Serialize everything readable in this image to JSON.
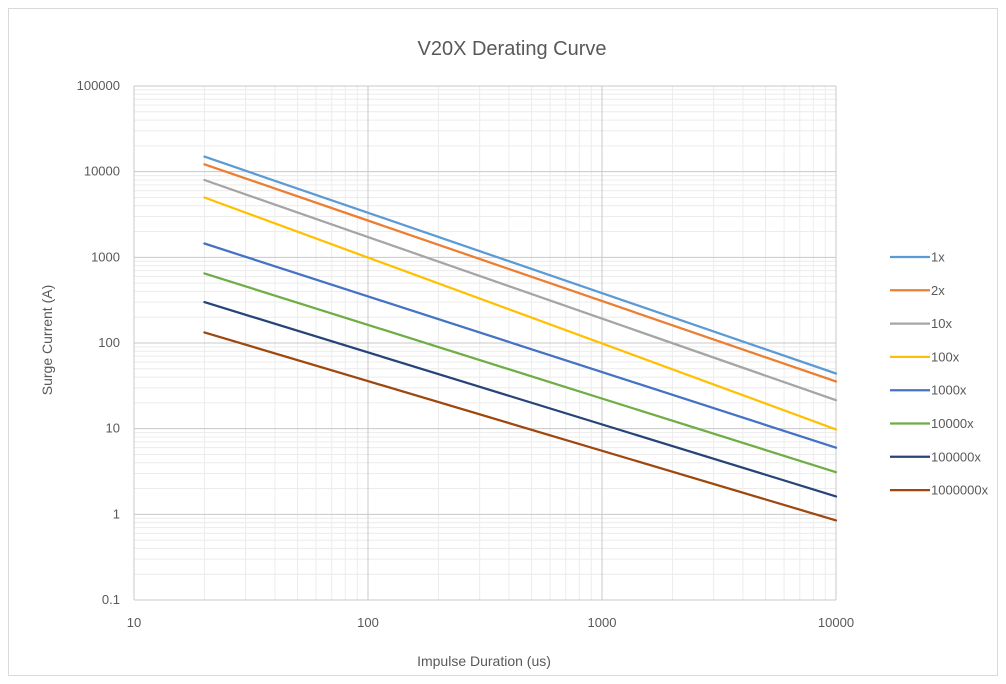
{
  "chart_data": {
    "type": "line",
    "title": "V20X Derating Curve",
    "xlabel": "Impulse Duration (us)",
    "ylabel": "Surge Current (A)",
    "x_scale": "log",
    "y_scale": "log",
    "xlim": [
      10,
      10000
    ],
    "ylim": [
      0.1,
      100000
    ],
    "x_ticks": [
      "10",
      "100",
      "1000",
      "10000"
    ],
    "y_ticks": [
      "0.1",
      "1",
      "10",
      "100",
      "1000",
      "10000",
      "100000"
    ],
    "grid": true,
    "legend_position": "right",
    "x": [
      20,
      10000
    ],
    "series": [
      {
        "name": "1x",
        "values": [
          15000,
          44
        ],
        "color": "#5b9bd5"
      },
      {
        "name": "2x",
        "values": [
          12200,
          35.5
        ],
        "color": "#ed7d31"
      },
      {
        "name": "10x",
        "values": [
          8000,
          21.5
        ],
        "color": "#a5a5a5"
      },
      {
        "name": "100x",
        "values": [
          5000,
          9.8
        ],
        "color": "#ffc000"
      },
      {
        "name": "1000x",
        "values": [
          1450,
          6
        ],
        "color": "#4472c4"
      },
      {
        "name": "10000x",
        "values": [
          650,
          3.1
        ],
        "color": "#70ad47"
      },
      {
        "name": "100000x",
        "values": [
          300,
          1.62
        ],
        "color": "#264478"
      },
      {
        "name": "1000000x",
        "values": [
          133,
          0.85
        ],
        "color": "#9e480e"
      }
    ]
  }
}
